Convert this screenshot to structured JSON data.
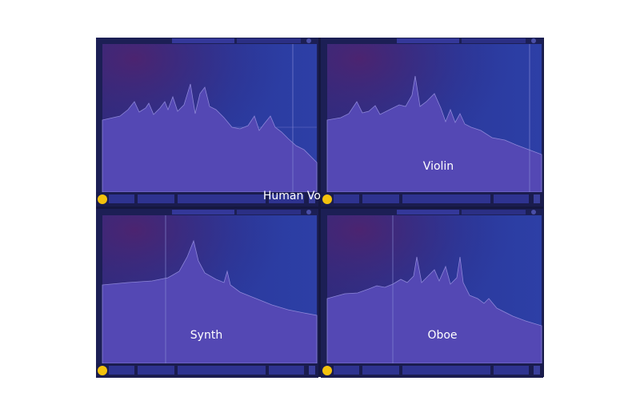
{
  "panels": [
    {
      "label": "Human Voice"
    },
    {
      "label": "Violin"
    },
    {
      "label": "Synth"
    },
    {
      "label": "Oboe"
    }
  ]
}
